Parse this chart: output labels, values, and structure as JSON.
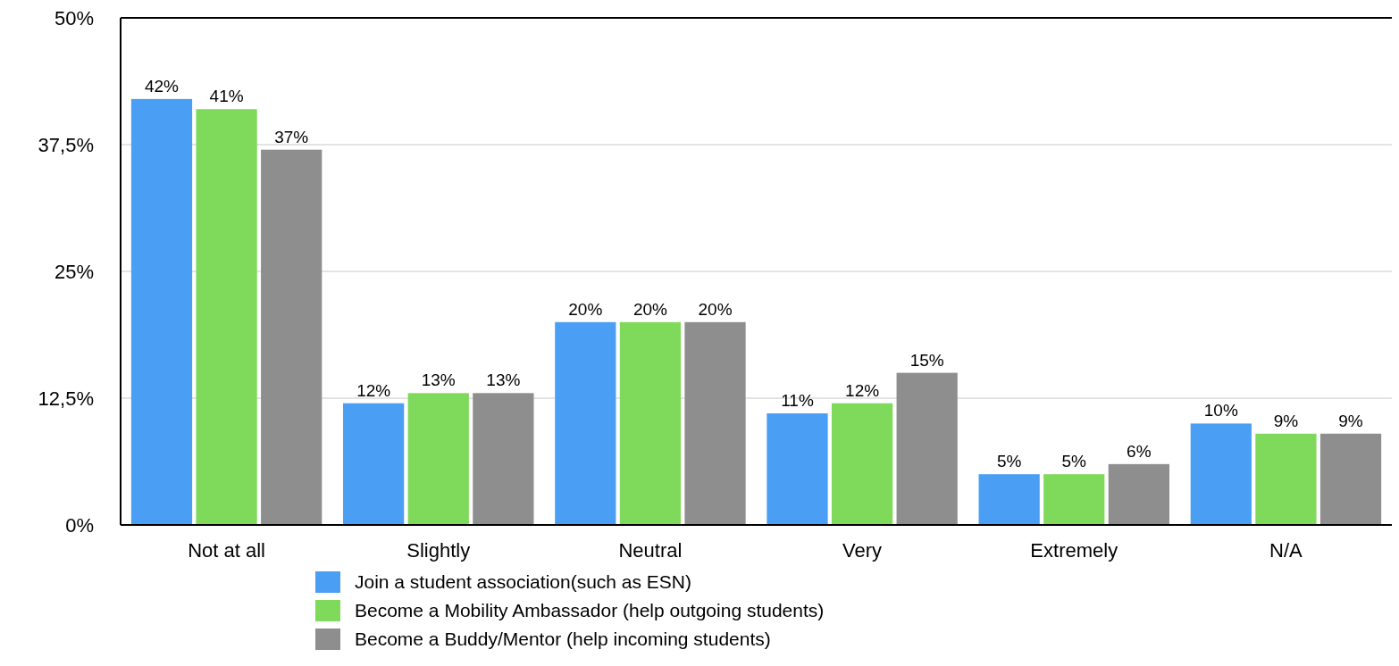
{
  "chart_data": {
    "type": "bar",
    "categories": [
      "Not at all",
      "Slightly",
      "Neutral",
      "Very",
      "Extremely",
      "N/A"
    ],
    "series": [
      {
        "name": "Join a student association(such as ESN)",
        "color": "#4a9ff5",
        "values": [
          42,
          12,
          20,
          11,
          5,
          10
        ],
        "value_labels": [
          "42%",
          "12%",
          "20%",
          "11%",
          "5%",
          "10%"
        ]
      },
      {
        "name": "Become a Mobility Ambassador (help outgoing students)",
        "color": "#7fd95a",
        "values": [
          41,
          13,
          20,
          12,
          5,
          9
        ],
        "value_labels": [
          "41%",
          "13%",
          "20%",
          "12%",
          "5%",
          "9%"
        ]
      },
      {
        "name": "Become a Buddy/Mentor (help incoming students)",
        "color": "#8e8e8e",
        "values": [
          37,
          13,
          20,
          15,
          6,
          9
        ],
        "value_labels": [
          "37%",
          "13%",
          "20%",
          "15%",
          "6%",
          "9%"
        ]
      }
    ],
    "ylim": [
      0,
      50
    ],
    "yticks": [
      {
        "value": 0,
        "label": "0%"
      },
      {
        "value": 12.5,
        "label": "12,5%"
      },
      {
        "value": 25,
        "label": "25%"
      },
      {
        "value": 37.5,
        "label": "37,5%"
      },
      {
        "value": 50,
        "label": "50%"
      }
    ],
    "grid": "y",
    "legend": "bottom"
  }
}
